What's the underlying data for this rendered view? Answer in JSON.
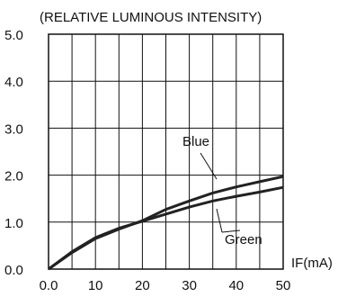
{
  "chart_data": {
    "type": "line",
    "title": "(RELATIVE LUMINOUS INTENSITY)",
    "xlabel": "IF(mA)",
    "ylabel": "",
    "xlim": [
      0,
      50
    ],
    "ylim": [
      0,
      5
    ],
    "x_ticks": [
      0,
      10,
      20,
      30,
      40,
      50
    ],
    "x_tick_labels": [
      "0.0",
      "10",
      "20",
      "30",
      "40",
      "50"
    ],
    "y_ticks": [
      0,
      1,
      2,
      3,
      4,
      5
    ],
    "y_tick_labels": [
      "0.0",
      "1.0",
      "2.0",
      "3.0",
      "4.0",
      "5.0"
    ],
    "grid": true,
    "grid_x_step": 5,
    "series": [
      {
        "name": "Blue",
        "x": [
          0,
          5,
          10,
          15,
          20,
          25,
          30,
          35,
          40,
          45,
          50
        ],
        "y": [
          0,
          0.35,
          0.65,
          0.85,
          1.03,
          1.27,
          1.45,
          1.62,
          1.75,
          1.86,
          1.97
        ]
      },
      {
        "name": "Green",
        "x": [
          0,
          5,
          10,
          15,
          20,
          25,
          30,
          35,
          40,
          45,
          50
        ],
        "y": [
          0,
          0.37,
          0.67,
          0.87,
          1.02,
          1.17,
          1.32,
          1.45,
          1.55,
          1.64,
          1.74
        ]
      }
    ],
    "colors": {
      "line": "#222222",
      "grid": "#111111",
      "axis": "#111111"
    }
  }
}
